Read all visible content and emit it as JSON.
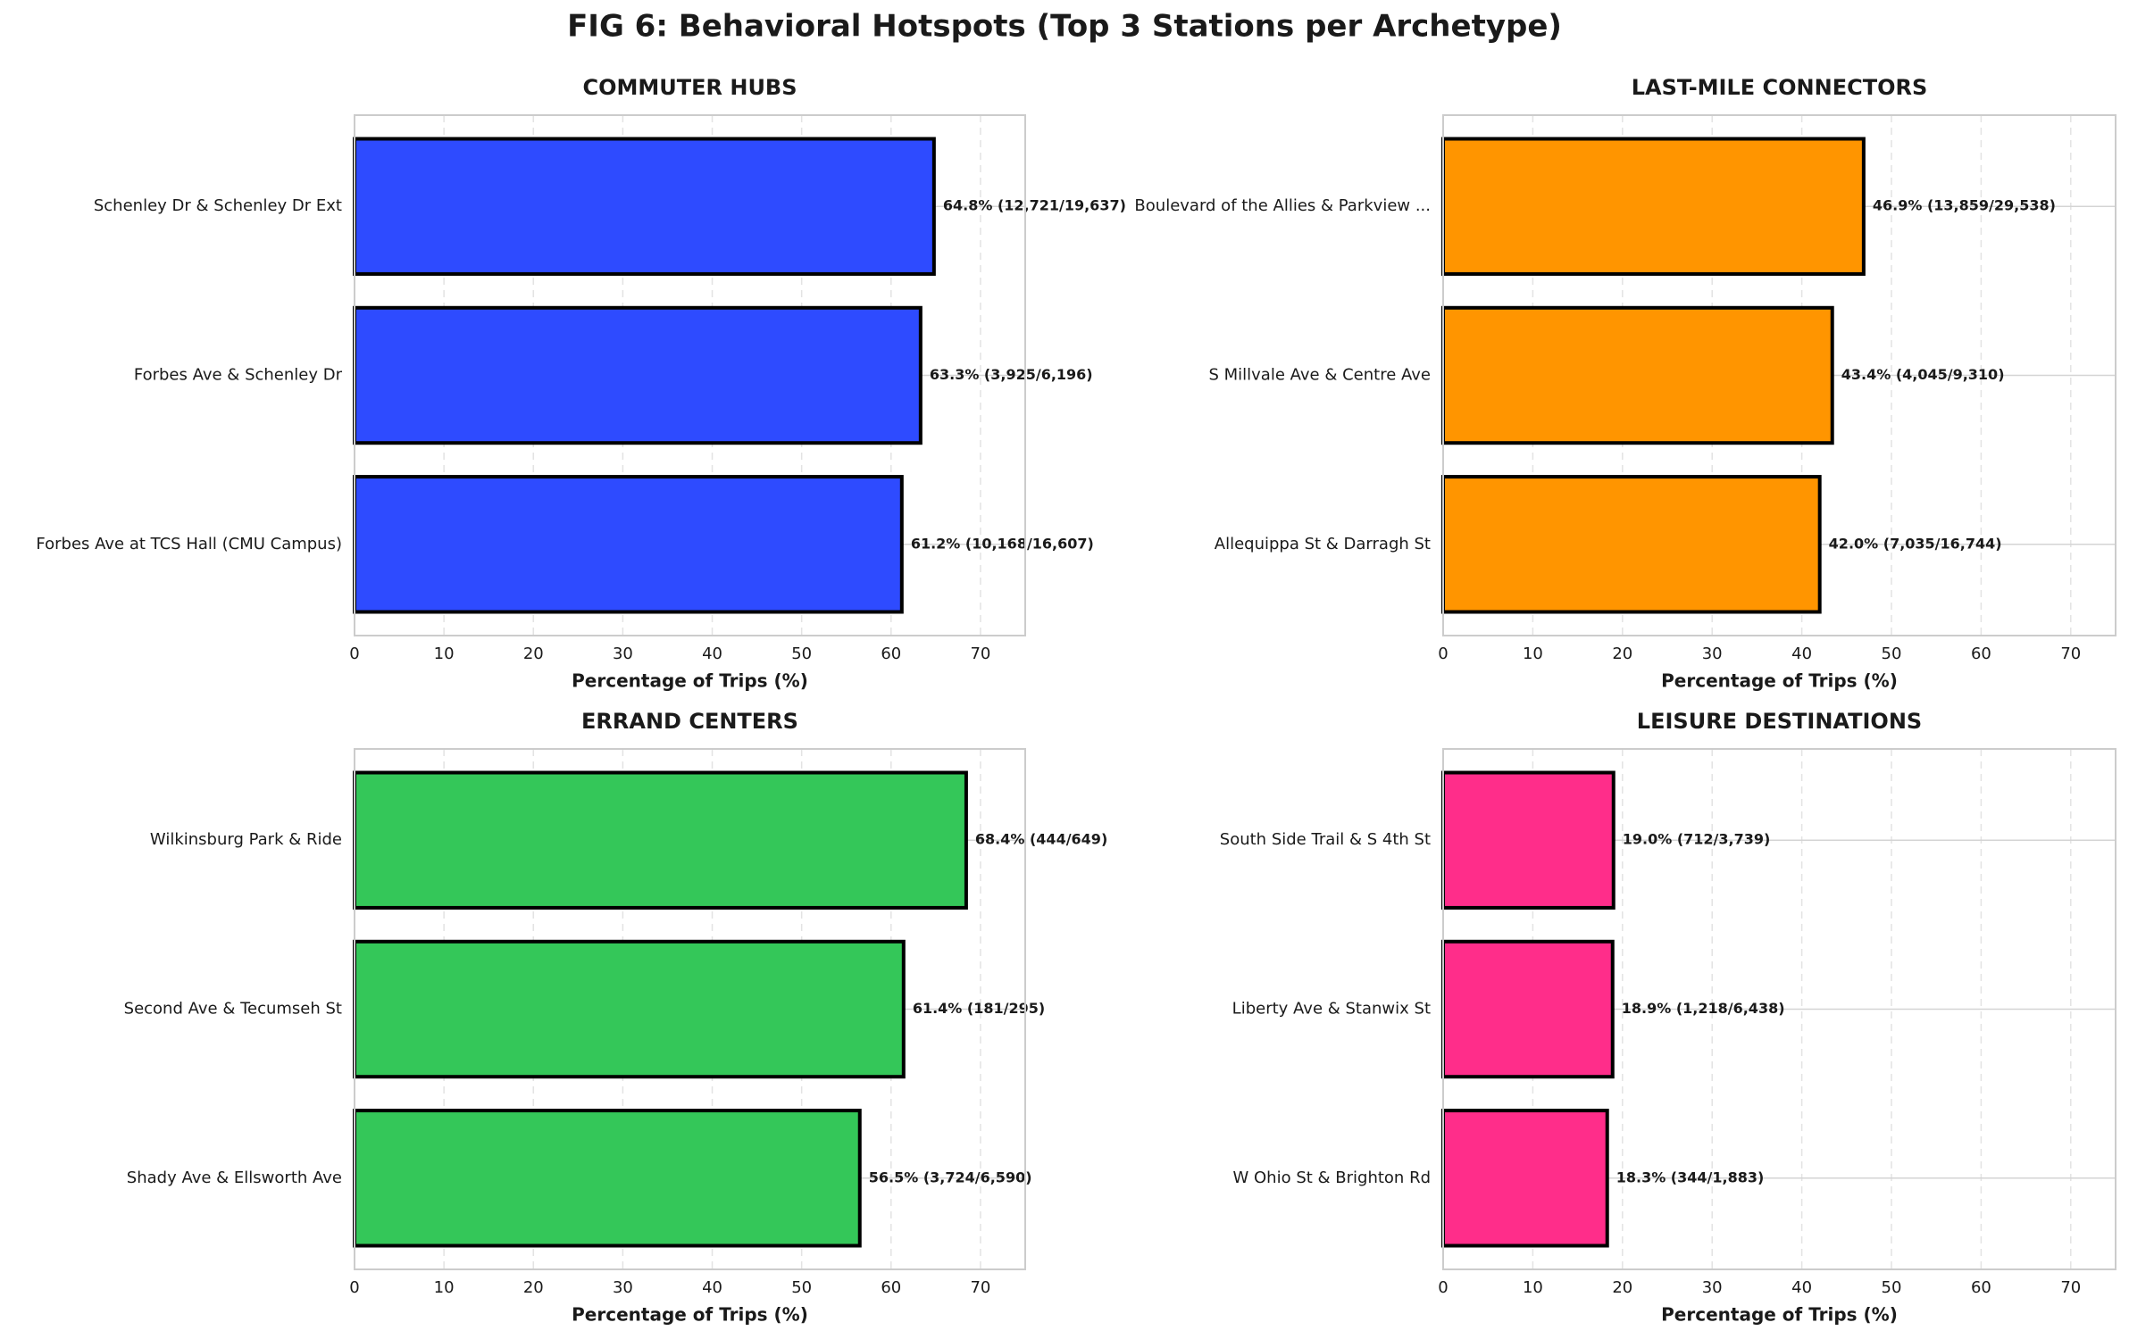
{
  "title": "FIG 6: Behavioral Hotspots (Top 3 Stations per Archetype)",
  "chart_data": [
    {
      "type": "bar",
      "orientation": "horizontal",
      "title": "COMMUTER HUBS",
      "categories": [
        "Schenley Dr & Schenley Dr Ext",
        "Forbes Ave & Schenley Dr",
        "Forbes Ave at TCS Hall (CMU Campus)"
      ],
      "values": [
        64.8,
        63.3,
        61.2
      ],
      "value_labels": [
        "64.8% (12,721/19,637)",
        "63.3% (3,925/6,196)",
        "61.2% (10,168/16,607)"
      ],
      "color": "#2e4bff",
      "xlabel": "Percentage of Trips (%)",
      "xlim": [
        0,
        75
      ],
      "xticks": [
        0,
        10,
        20,
        30,
        40,
        50,
        60,
        70
      ],
      "grid": true
    },
    {
      "type": "bar",
      "orientation": "horizontal",
      "title": "LAST-MILE CONNECTORS",
      "categories": [
        "Boulevard of the Allies & Parkview ...",
        "S Millvale Ave & Centre Ave",
        "Allequippa St & Darragh St"
      ],
      "values": [
        46.9,
        43.4,
        42.0
      ],
      "value_labels": [
        "46.9% (13,859/29,538)",
        "43.4% (4,045/9,310)",
        "42.0% (7,035/16,744)"
      ],
      "color": "#ff9500",
      "xlabel": "Percentage of Trips (%)",
      "xlim": [
        0,
        75
      ],
      "xticks": [
        0,
        10,
        20,
        30,
        40,
        50,
        60,
        70
      ],
      "grid": true
    },
    {
      "type": "bar",
      "orientation": "horizontal",
      "title": "ERRAND CENTERS",
      "categories": [
        "Wilkinsburg Park & Ride",
        "Second Ave & Tecumseh St",
        "Shady Ave & Ellsworth Ave"
      ],
      "values": [
        68.4,
        61.4,
        56.5
      ],
      "value_labels": [
        "68.4% (444/649)",
        "61.4% (181/295)",
        "56.5% (3,724/6,590)"
      ],
      "color": "#34c759",
      "xlabel": "Percentage of Trips (%)",
      "xlim": [
        0,
        75
      ],
      "xticks": [
        0,
        10,
        20,
        30,
        40,
        50,
        60,
        70
      ],
      "grid": true
    },
    {
      "type": "bar",
      "orientation": "horizontal",
      "title": "LEISURE DESTINATIONS",
      "categories": [
        "South Side Trail & S 4th St",
        "Liberty Ave & Stanwix St",
        "W Ohio St & Brighton Rd"
      ],
      "values": [
        19.0,
        18.9,
        18.3
      ],
      "value_labels": [
        "19.0% (712/3,739)",
        "18.9% (1,218/6,438)",
        "18.3% (344/1,883)"
      ],
      "color": "#ff2d8a",
      "xlabel": "Percentage of Trips (%)",
      "xlim": [
        0,
        75
      ],
      "xticks": [
        0,
        10,
        20,
        30,
        40,
        50,
        60,
        70
      ],
      "grid": true
    }
  ]
}
